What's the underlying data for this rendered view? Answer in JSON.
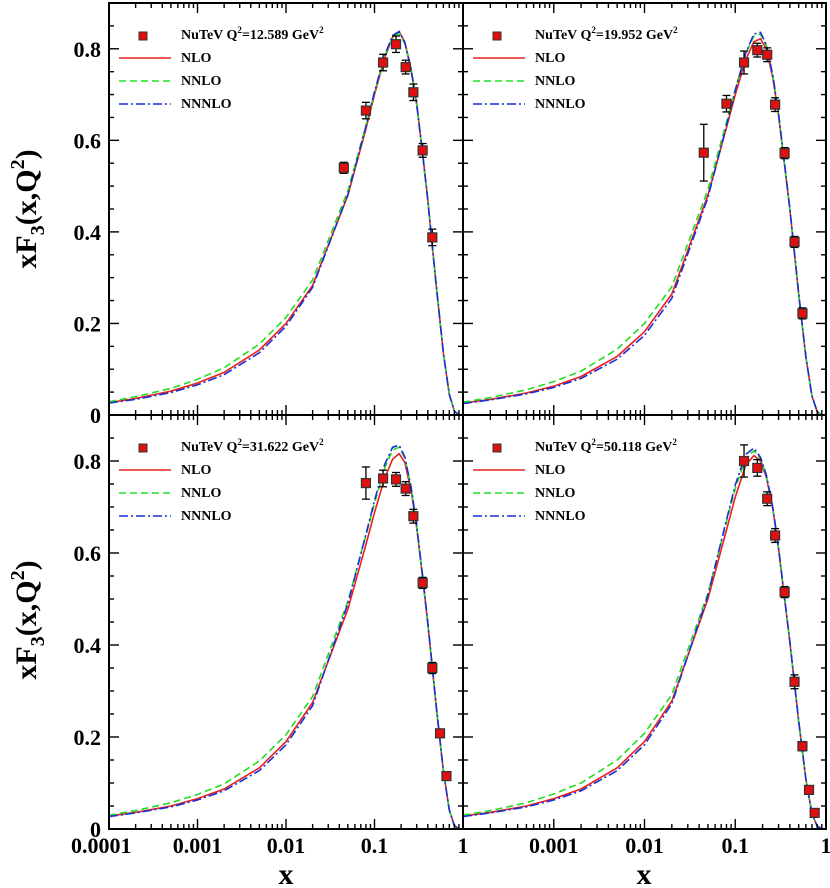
{
  "figure": {
    "ylabel": "xF3(x,Q2)",
    "ylabel_parts": {
      "base": "xF",
      "sub": "3",
      "mid": "(x,Q",
      "sup": "2",
      "end": ")"
    },
    "xlabel": "x"
  },
  "chart_data": [
    {
      "type": "line",
      "panel": "top-left",
      "xscale": "log",
      "xlim": [
        0.0001,
        1
      ],
      "ylim": [
        0,
        0.9
      ],
      "xticks": [
        "0.0001",
        "0.001",
        "0.01",
        "0.1",
        "1"
      ],
      "yticks": [
        "0",
        "0.2",
        "0.4",
        "0.6",
        "0.8"
      ],
      "legend_position": "top-left",
      "legend": {
        "data": "NuTeV Q=12.589 GeV",
        "data_label_parts": {
          "a": "NuTeV Q",
          "s1": "2",
          "b": "=12.589 GeV",
          "s2": "2"
        },
        "nlo": "NLO",
        "nnlo": "NNLO",
        "nnnlo": "NNNLO"
      },
      "data_points": [
        {
          "x": 0.045,
          "y": 0.54,
          "err": 0.012
        },
        {
          "x": 0.08,
          "y": 0.665,
          "err": 0.018
        },
        {
          "x": 0.125,
          "y": 0.77,
          "err": 0.018
        },
        {
          "x": 0.175,
          "y": 0.81,
          "err": 0.018
        },
        {
          "x": 0.225,
          "y": 0.76,
          "err": 0.015
        },
        {
          "x": 0.275,
          "y": 0.705,
          "err": 0.018
        },
        {
          "x": 0.35,
          "y": 0.578,
          "err": 0.015
        },
        {
          "x": 0.45,
          "y": 0.388,
          "err": 0.018
        }
      ],
      "series": [
        {
          "name": "NLO",
          "x": [
            0.0001,
            0.0002,
            0.0005,
            0.001,
            0.002,
            0.005,
            0.01,
            0.02,
            0.05,
            0.08,
            0.1,
            0.13,
            0.16,
            0.19,
            0.22,
            0.26,
            0.3,
            0.35,
            0.4,
            0.45,
            0.5,
            0.6,
            0.7,
            0.8,
            0.9
          ],
          "y": [
            0.027,
            0.036,
            0.052,
            0.07,
            0.093,
            0.142,
            0.2,
            0.283,
            0.48,
            0.625,
            0.7,
            0.78,
            0.825,
            0.837,
            0.815,
            0.755,
            0.68,
            0.57,
            0.47,
            0.37,
            0.28,
            0.135,
            0.045,
            0.008,
            0.0005
          ]
        },
        {
          "name": "NNLO",
          "x": [
            0.0001,
            0.0002,
            0.0005,
            0.001,
            0.002,
            0.005,
            0.01,
            0.02,
            0.05,
            0.08,
            0.1,
            0.13,
            0.16,
            0.19,
            0.22,
            0.26,
            0.3,
            0.35,
            0.4,
            0.45,
            0.5,
            0.6,
            0.7,
            0.8,
            0.9
          ],
          "y": [
            0.029,
            0.04,
            0.058,
            0.078,
            0.103,
            0.155,
            0.213,
            0.295,
            0.49,
            0.632,
            0.705,
            0.783,
            0.826,
            0.834,
            0.812,
            0.752,
            0.677,
            0.568,
            0.468,
            0.368,
            0.278,
            0.134,
            0.045,
            0.008,
            0.0005
          ]
        },
        {
          "name": "NNNLO",
          "x": [
            0.0001,
            0.0002,
            0.0005,
            0.001,
            0.002,
            0.005,
            0.01,
            0.02,
            0.05,
            0.08,
            0.1,
            0.13,
            0.16,
            0.19,
            0.22,
            0.26,
            0.3,
            0.35,
            0.4,
            0.45,
            0.5,
            0.6,
            0.7,
            0.8,
            0.9
          ],
          "y": [
            0.026,
            0.034,
            0.049,
            0.066,
            0.088,
            0.136,
            0.194,
            0.279,
            0.482,
            0.63,
            0.706,
            0.785,
            0.829,
            0.838,
            0.814,
            0.753,
            0.678,
            0.569,
            0.469,
            0.369,
            0.279,
            0.135,
            0.045,
            0.008,
            0.0005
          ]
        }
      ]
    },
    {
      "type": "line",
      "panel": "top-right",
      "xscale": "log",
      "xlim": [
        0.0001,
        1
      ],
      "ylim": [
        0,
        0.9
      ],
      "xticks": [
        "0.0001",
        "0.001",
        "0.01",
        "0.1",
        "1"
      ],
      "yticks": [
        "0",
        "0.2",
        "0.4",
        "0.6",
        "0.8"
      ],
      "legend_position": "top-left",
      "legend": {
        "data": "NuTeV Q=19.952 GeV",
        "data_label_parts": {
          "a": "NuTeV Q",
          "s1": "2",
          "b": "=19.952 GeV",
          "s2": "2"
        },
        "nlo": "NLO",
        "nnlo": "NNLO",
        "nnnlo": "NNNLO"
      },
      "data_points": [
        {
          "x": 0.045,
          "y": 0.573,
          "err": 0.062
        },
        {
          "x": 0.08,
          "y": 0.68,
          "err": 0.018
        },
        {
          "x": 0.125,
          "y": 0.77,
          "err": 0.025
        },
        {
          "x": 0.175,
          "y": 0.797,
          "err": 0.015
        },
        {
          "x": 0.225,
          "y": 0.787,
          "err": 0.015
        },
        {
          "x": 0.275,
          "y": 0.678,
          "err": 0.015
        },
        {
          "x": 0.35,
          "y": 0.572,
          "err": 0.012
        },
        {
          "x": 0.45,
          "y": 0.378,
          "err": 0.012
        },
        {
          "x": 0.55,
          "y": 0.222,
          "err": 0.012
        }
      ],
      "series": [
        {
          "name": "NLO",
          "x": [
            0.0001,
            0.0002,
            0.0005,
            0.001,
            0.002,
            0.005,
            0.01,
            0.02,
            0.05,
            0.08,
            0.1,
            0.13,
            0.16,
            0.19,
            0.22,
            0.26,
            0.3,
            0.35,
            0.4,
            0.45,
            0.5,
            0.6,
            0.7,
            0.8,
            0.9
          ],
          "y": [
            0.026,
            0.034,
            0.048,
            0.063,
            0.084,
            0.128,
            0.182,
            0.264,
            0.48,
            0.628,
            0.7,
            0.775,
            0.815,
            0.822,
            0.8,
            0.735,
            0.655,
            0.545,
            0.448,
            0.352,
            0.263,
            0.126,
            0.042,
            0.007,
            0.0005
          ]
        },
        {
          "name": "NNLO",
          "x": [
            0.0001,
            0.0002,
            0.0005,
            0.001,
            0.002,
            0.005,
            0.01,
            0.02,
            0.05,
            0.08,
            0.1,
            0.13,
            0.16,
            0.19,
            0.22,
            0.26,
            0.3,
            0.35,
            0.4,
            0.45,
            0.5,
            0.6,
            0.7,
            0.8,
            0.9
          ],
          "y": [
            0.028,
            0.038,
            0.055,
            0.073,
            0.096,
            0.144,
            0.2,
            0.28,
            0.492,
            0.64,
            0.712,
            0.788,
            0.828,
            0.832,
            0.807,
            0.74,
            0.658,
            0.547,
            0.449,
            0.353,
            0.264,
            0.126,
            0.042,
            0.007,
            0.0005
          ]
        },
        {
          "name": "NNNLO",
          "x": [
            0.0001,
            0.0002,
            0.0005,
            0.001,
            0.002,
            0.005,
            0.01,
            0.02,
            0.05,
            0.08,
            0.1,
            0.13,
            0.16,
            0.19,
            0.22,
            0.26,
            0.3,
            0.35,
            0.4,
            0.45,
            0.5,
            0.6,
            0.7,
            0.8,
            0.9
          ],
          "y": [
            0.025,
            0.033,
            0.046,
            0.06,
            0.08,
            0.122,
            0.174,
            0.255,
            0.475,
            0.632,
            0.71,
            0.79,
            0.832,
            0.836,
            0.809,
            0.741,
            0.659,
            0.548,
            0.45,
            0.354,
            0.265,
            0.127,
            0.042,
            0.007,
            0.0005
          ]
        }
      ]
    },
    {
      "type": "line",
      "panel": "bottom-left",
      "xscale": "log",
      "xlim": [
        0.0001,
        1
      ],
      "ylim": [
        0,
        0.9
      ],
      "xticks": [
        "0.0001",
        "0.001",
        "0.01",
        "0.1",
        "1"
      ],
      "yticks": [
        "0",
        "0.2",
        "0.4",
        "0.6",
        "0.8"
      ],
      "legend_position": "top-left",
      "legend": {
        "data": "NuTeV Q=31.622 GeV",
        "data_label_parts": {
          "a": "NuTeV Q",
          "s1": "2",
          "b": "=31.622 GeV",
          "s2": "2"
        },
        "nlo": "NLO",
        "nnlo": "NNLO",
        "nnnlo": "NNNLO"
      },
      "data_points": [
        {
          "x": 0.08,
          "y": 0.752,
          "err": 0.035
        },
        {
          "x": 0.125,
          "y": 0.762,
          "err": 0.018
        },
        {
          "x": 0.175,
          "y": 0.76,
          "err": 0.015
        },
        {
          "x": 0.225,
          "y": 0.74,
          "err": 0.015
        },
        {
          "x": 0.275,
          "y": 0.68,
          "err": 0.015
        },
        {
          "x": 0.35,
          "y": 0.535,
          "err": 0.012
        },
        {
          "x": 0.45,
          "y": 0.35,
          "err": 0.012
        },
        {
          "x": 0.55,
          "y": 0.208,
          "err": 0.006
        },
        {
          "x": 0.65,
          "y": 0.115,
          "err": 0.006
        }
      ],
      "series": [
        {
          "name": "NLO",
          "x": [
            0.0001,
            0.0002,
            0.0005,
            0.001,
            0.002,
            0.005,
            0.01,
            0.02,
            0.05,
            0.08,
            0.1,
            0.13,
            0.16,
            0.19,
            0.22,
            0.26,
            0.3,
            0.35,
            0.4,
            0.45,
            0.5,
            0.6,
            0.7,
            0.8,
            0.9
          ],
          "y": [
            0.028,
            0.036,
            0.05,
            0.066,
            0.087,
            0.133,
            0.19,
            0.275,
            0.478,
            0.618,
            0.688,
            0.762,
            0.804,
            0.816,
            0.797,
            0.735,
            0.655,
            0.545,
            0.446,
            0.35,
            0.262,
            0.125,
            0.041,
            0.007,
            0.0005
          ]
        },
        {
          "name": "NNLO",
          "x": [
            0.0001,
            0.0002,
            0.0005,
            0.001,
            0.002,
            0.005,
            0.01,
            0.02,
            0.05,
            0.08,
            0.1,
            0.13,
            0.16,
            0.19,
            0.22,
            0.26,
            0.3,
            0.35,
            0.4,
            0.45,
            0.5,
            0.6,
            0.7,
            0.8,
            0.9
          ],
          "y": [
            0.03,
            0.04,
            0.057,
            0.075,
            0.098,
            0.148,
            0.205,
            0.288,
            0.495,
            0.638,
            0.708,
            0.784,
            0.824,
            0.83,
            0.807,
            0.741,
            0.659,
            0.548,
            0.448,
            0.352,
            0.263,
            0.125,
            0.041,
            0.007,
            0.0005
          ]
        },
        {
          "name": "NNNLO",
          "x": [
            0.0001,
            0.0002,
            0.0005,
            0.001,
            0.002,
            0.005,
            0.01,
            0.02,
            0.05,
            0.08,
            0.1,
            0.13,
            0.16,
            0.19,
            0.22,
            0.26,
            0.3,
            0.35,
            0.4,
            0.45,
            0.5,
            0.6,
            0.7,
            0.8,
            0.9
          ],
          "y": [
            0.027,
            0.035,
            0.048,
            0.063,
            0.083,
            0.127,
            0.183,
            0.268,
            0.49,
            0.64,
            0.714,
            0.792,
            0.83,
            0.834,
            0.809,
            0.742,
            0.66,
            0.549,
            0.449,
            0.353,
            0.264,
            0.126,
            0.041,
            0.007,
            0.0005
          ]
        }
      ]
    },
    {
      "type": "line",
      "panel": "bottom-right",
      "xscale": "log",
      "xlim": [
        0.0001,
        1
      ],
      "ylim": [
        0,
        0.9
      ],
      "xticks": [
        "0.0001",
        "0.001",
        "0.01",
        "0.1",
        "1"
      ],
      "yticks": [
        "0",
        "0.2",
        "0.4",
        "0.6",
        "0.8"
      ],
      "legend_position": "top-left",
      "legend": {
        "data": "NuTeV Q=50.118 GeV",
        "data_label_parts": {
          "a": "NuTeV Q",
          "s1": "2",
          "b": "=50.118 GeV",
          "s2": "2"
        },
        "nlo": "NLO",
        "nnlo": "NNLO",
        "nnnlo": "NNNLO"
      },
      "data_points": [
        {
          "x": 0.125,
          "y": 0.8,
          "err": 0.035
        },
        {
          "x": 0.175,
          "y": 0.785,
          "err": 0.018
        },
        {
          "x": 0.225,
          "y": 0.718,
          "err": 0.015
        },
        {
          "x": 0.275,
          "y": 0.638,
          "err": 0.015
        },
        {
          "x": 0.35,
          "y": 0.515,
          "err": 0.012
        },
        {
          "x": 0.45,
          "y": 0.32,
          "err": 0.015
        },
        {
          "x": 0.55,
          "y": 0.18,
          "err": 0.01
        },
        {
          "x": 0.65,
          "y": 0.085,
          "err": 0.008
        },
        {
          "x": 0.75,
          "y": 0.035,
          "err": 0.006
        }
      ],
      "series": [
        {
          "name": "NLO",
          "x": [
            0.0001,
            0.0002,
            0.0005,
            0.001,
            0.002,
            0.005,
            0.01,
            0.02,
            0.05,
            0.08,
            0.1,
            0.13,
            0.16,
            0.19,
            0.22,
            0.26,
            0.3,
            0.35,
            0.4,
            0.45,
            0.5,
            0.6,
            0.7,
            0.8,
            0.9
          ],
          "y": [
            0.028,
            0.036,
            0.05,
            0.066,
            0.087,
            0.133,
            0.19,
            0.278,
            0.5,
            0.65,
            0.722,
            0.79,
            0.812,
            0.8,
            0.765,
            0.695,
            0.61,
            0.5,
            0.405,
            0.315,
            0.233,
            0.108,
            0.034,
            0.006,
            0.0004
          ]
        },
        {
          "name": "NNLO",
          "x": [
            0.0001,
            0.0002,
            0.0005,
            0.001,
            0.002,
            0.005,
            0.01,
            0.02,
            0.05,
            0.08,
            0.1,
            0.13,
            0.16,
            0.19,
            0.22,
            0.26,
            0.3,
            0.35,
            0.4,
            0.45,
            0.5,
            0.6,
            0.7,
            0.8,
            0.9
          ],
          "y": [
            0.03,
            0.04,
            0.057,
            0.076,
            0.1,
            0.15,
            0.208,
            0.292,
            0.512,
            0.668,
            0.74,
            0.806,
            0.822,
            0.805,
            0.768,
            0.697,
            0.611,
            0.501,
            0.406,
            0.316,
            0.234,
            0.108,
            0.034,
            0.006,
            0.0004
          ]
        },
        {
          "name": "NNNLO",
          "x": [
            0.0001,
            0.0002,
            0.0005,
            0.001,
            0.002,
            0.005,
            0.01,
            0.02,
            0.05,
            0.08,
            0.1,
            0.13,
            0.16,
            0.19,
            0.22,
            0.26,
            0.3,
            0.35,
            0.4,
            0.45,
            0.5,
            0.6,
            0.7,
            0.8,
            0.9
          ],
          "y": [
            0.027,
            0.035,
            0.048,
            0.063,
            0.083,
            0.127,
            0.183,
            0.272,
            0.508,
            0.672,
            0.748,
            0.814,
            0.828,
            0.808,
            0.77,
            0.698,
            0.612,
            0.502,
            0.407,
            0.317,
            0.235,
            0.108,
            0.034,
            0.006,
            0.0004
          ]
        }
      ]
    }
  ]
}
